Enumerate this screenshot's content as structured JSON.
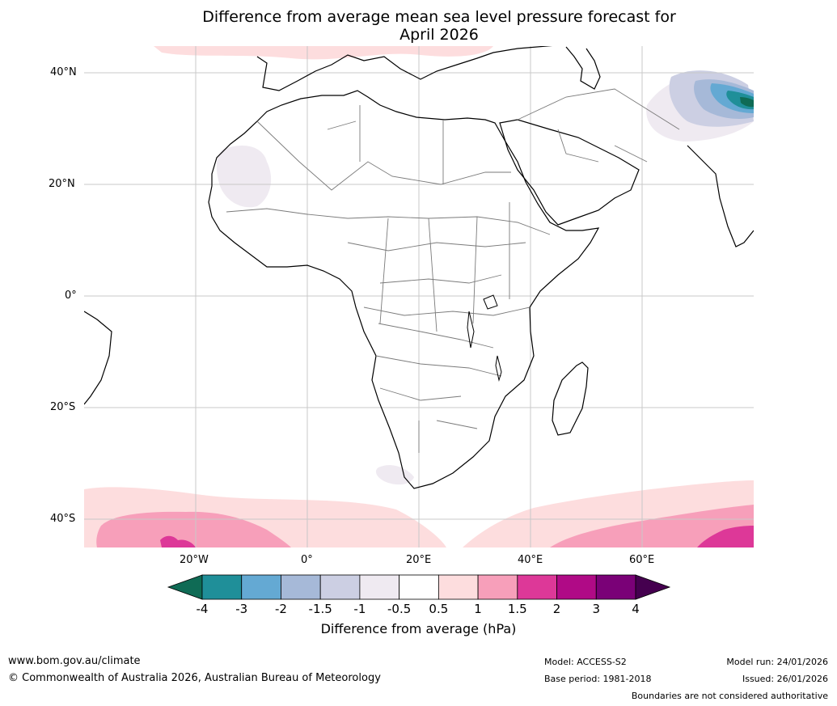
{
  "title": {
    "line1": "Difference from average mean sea level pressure forecast for",
    "line2": "April 2026"
  },
  "axes": {
    "lat_labels": [
      "40°N",
      "20°N",
      "0°",
      "20°S",
      "40°S"
    ],
    "lon_labels": [
      "20°W",
      "0°",
      "20°E",
      "40°E",
      "60°E"
    ]
  },
  "colorbar": {
    "ticks": [
      "-4",
      "-3",
      "-2",
      "-1.5",
      "-1",
      "-0.5",
      "0.5",
      "1",
      "1.5",
      "2",
      "3",
      "4"
    ],
    "colors": [
      "#0f6b55",
      "#1f8f99",
      "#64a9d3",
      "#a6b9d8",
      "#cccfe3",
      "#efeaf1",
      "#ffffff",
      "#fdddde",
      "#f79fba",
      "#dd3898",
      "#b00a86",
      "#7a0177",
      "#45004f"
    ],
    "label": "Difference from average (hPa)"
  },
  "footer": {
    "website": "www.bom.gov.au/climate",
    "copyright": "© Commonwealth of Australia 2026, Australian Bureau of Meteorology",
    "model": "Model: ACCESS-S2",
    "base_period": "Base period: 1981-2018",
    "model_run": "Model run: 24/01/2026",
    "issued": "Issued: 26/01/2026",
    "disclaimer": "Boundaries are not considered authoritative"
  }
}
